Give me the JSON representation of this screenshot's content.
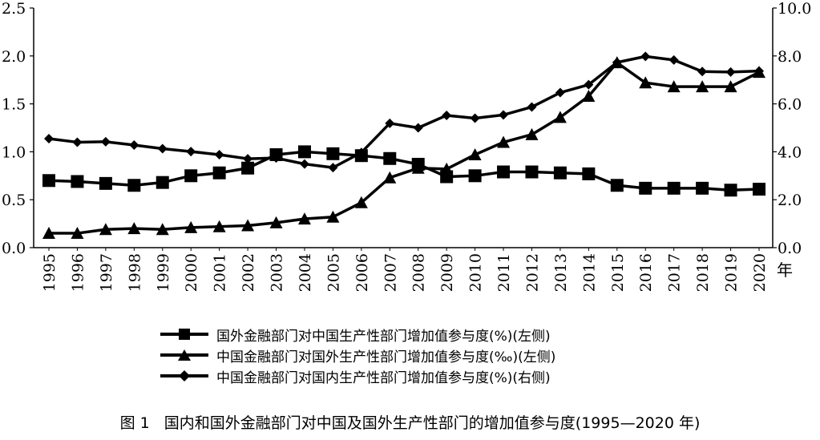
{
  "chart_data": {
    "type": "line",
    "title": "国内和国外金融部门对中国及国外生产性部门的增加值参与度(1995—2020 年)",
    "figure_label": "图 1",
    "xlabel": "年",
    "categories": [
      "1995",
      "1996",
      "1997",
      "1998",
      "1999",
      "2000",
      "2001",
      "2002",
      "2003",
      "2004",
      "2005",
      "2006",
      "2007",
      "2008",
      "2009",
      "2010",
      "2011",
      "2012",
      "2013",
      "2014",
      "2015",
      "2016",
      "2017",
      "2018",
      "2019",
      "2020"
    ],
    "y_left": {
      "ylim": [
        0,
        2.5
      ],
      "ticks": [
        "0.0",
        "0.5",
        "1.0",
        "1.5",
        "2.0",
        "2.5"
      ]
    },
    "y_right": {
      "ylim": [
        0,
        10
      ],
      "ticks": [
        "0.0",
        "2.0",
        "4.0",
        "6.0",
        "8.0",
        "10.0"
      ]
    },
    "legend_position": "bottom",
    "grid": false,
    "series": [
      {
        "name": "国外金融部门对中国生产性部门增加值参与度(%)(左侧)",
        "marker": "square",
        "axis": "left",
        "values": [
          0.7,
          0.69,
          0.67,
          0.65,
          0.68,
          0.75,
          0.78,
          0.83,
          0.97,
          1.0,
          0.98,
          0.96,
          0.93,
          0.87,
          0.74,
          0.75,
          0.79,
          0.79,
          0.78,
          0.77,
          0.65,
          0.62,
          0.62,
          0.62,
          0.6,
          0.61
        ]
      },
      {
        "name": "中国金融部门对国外生产性部门增加值参与度(‰)(左侧)",
        "marker": "triangle",
        "axis": "left",
        "values": [
          0.15,
          0.15,
          0.19,
          0.2,
          0.19,
          0.21,
          0.22,
          0.23,
          0.26,
          0.3,
          0.32,
          0.47,
          0.73,
          0.83,
          0.82,
          0.97,
          1.1,
          1.18,
          1.36,
          1.58,
          1.93,
          1.72,
          1.68,
          1.68,
          1.68,
          1.83
        ]
      },
      {
        "name": "中国金融部门对国内生产性部门增加值参与度(%)(右侧)",
        "marker": "diamond",
        "axis": "right",
        "values": [
          4.55,
          4.4,
          4.42,
          4.28,
          4.13,
          4.01,
          3.88,
          3.71,
          3.74,
          3.49,
          3.34,
          3.97,
          5.19,
          5.0,
          5.52,
          5.4,
          5.54,
          5.87,
          6.47,
          6.8,
          7.73,
          7.98,
          7.83,
          7.35,
          7.33,
          7.37
        ]
      }
    ]
  }
}
